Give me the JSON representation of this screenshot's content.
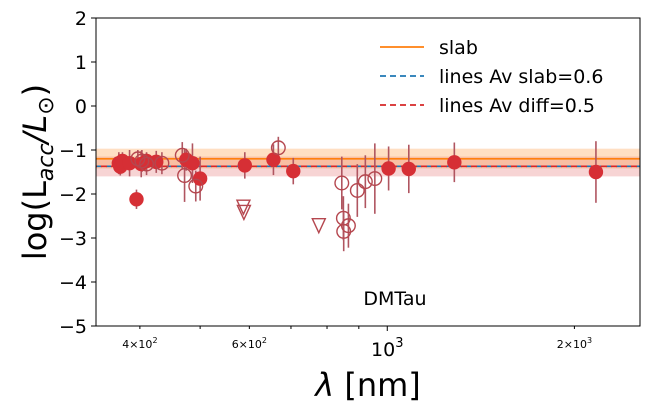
{
  "chart_data": {
    "type": "scatter",
    "title": "",
    "annotation": "DMTau",
    "xlabel": "λ [nm]",
    "ylabel": "log(L_acc/L_⊙)",
    "xscale": "log",
    "xlim": [
      340,
      2550
    ],
    "ylim": [
      -5,
      2
    ],
    "y_ticks": [
      {
        "v": 2,
        "label": "2"
      },
      {
        "v": 1,
        "label": "1"
      },
      {
        "v": 0,
        "label": "0"
      },
      {
        "v": -1,
        "label": "−1"
      },
      {
        "v": -2,
        "label": "−2"
      },
      {
        "v": -3,
        "label": "−3"
      },
      {
        "v": -4,
        "label": "−4"
      },
      {
        "v": -5,
        "label": "−5"
      }
    ],
    "x_ticks": [
      {
        "v": 400,
        "base": "4×10",
        "exp": "2",
        "major": false
      },
      {
        "v": 600,
        "base": "6×10",
        "exp": "2",
        "major": false
      },
      {
        "v": 1000,
        "base": "10",
        "exp": "3",
        "major": true
      },
      {
        "v": 2000,
        "base": "2×10",
        "exp": "3",
        "major": false
      }
    ],
    "x_minor_ticks": [
      300,
      500,
      700,
      800,
      900
    ],
    "legend": {
      "position": "top-right",
      "entries": [
        {
          "label": "slab",
          "color": "#ff7f0e",
          "dash": "solid"
        },
        {
          "label": "lines Av slab=0.6",
          "color": "#1f77b4",
          "dash": "dashed"
        },
        {
          "label": "lines Av diff=0.5",
          "color": "#d62728",
          "dash": "dashed"
        }
      ]
    },
    "reference_lines": {
      "slab": {
        "value": -1.2,
        "band": [
          -1.42,
          -0.97
        ],
        "color": "#ff7f0e"
      },
      "lines_av_slab": {
        "value": -1.37,
        "color": "#1f77b4"
      },
      "lines_av_diff": {
        "value": -1.37,
        "band": [
          -1.6,
          -1.15
        ],
        "color": "#d62728"
      }
    },
    "marker_color": "#d62f35",
    "open_color": "#b5474f",
    "errbar_color": "#b05560",
    "series": [
      {
        "kind": "filled",
        "points": [
          {
            "x": 370,
            "y": -1.3,
            "err": 0.25
          },
          {
            "x": 372,
            "y": -1.38,
            "err": 0.2
          },
          {
            "x": 375,
            "y": -1.25,
            "err": 0.2
          },
          {
            "x": 385,
            "y": -1.3,
            "err": 0.3
          },
          {
            "x": 395,
            "y": -2.12,
            "err": 0.22
          },
          {
            "x": 402,
            "y": -1.32,
            "err": 0.3
          },
          {
            "x": 410,
            "y": -1.25,
            "err": 0.2
          },
          {
            "x": 425,
            "y": -1.27,
            "err": 0.25
          },
          {
            "x": 475,
            "y": -1.22,
            "err": 0.25
          },
          {
            "x": 486,
            "y": -1.3,
            "err": 0.45
          },
          {
            "x": 500,
            "y": -1.65,
            "err": 0.5
          },
          {
            "x": 590,
            "y": -1.35,
            "err": 0.3
          },
          {
            "x": 656,
            "y": -1.22,
            "err": 0.35
          },
          {
            "x": 706,
            "y": -1.48,
            "err": 0.3
          },
          {
            "x": 1005,
            "y": -1.42,
            "err": 0.5
          },
          {
            "x": 1083,
            "y": -1.43,
            "err": 0.55
          },
          {
            "x": 1282,
            "y": -1.28,
            "err": 0.45
          },
          {
            "x": 2166,
            "y": -1.5,
            "err": 0.7
          }
        ]
      },
      {
        "kind": "open",
        "points": [
          {
            "x": 397,
            "y": -1.2,
            "err": 0.2
          },
          {
            "x": 403,
            "y": -1.25,
            "err": 0.25
          },
          {
            "x": 410,
            "y": -1.32,
            "err": 0.25
          },
          {
            "x": 434,
            "y": -1.3,
            "err": 0.25
          },
          {
            "x": 468,
            "y": -1.12,
            "err": 0.3
          },
          {
            "x": 472,
            "y": -1.58,
            "err": 0.6
          },
          {
            "x": 492,
            "y": -1.82,
            "err": 0.35
          },
          {
            "x": 668,
            "y": -0.95,
            "err": 0.25
          },
          {
            "x": 845,
            "y": -1.75,
            "err": 0.6
          },
          {
            "x": 850,
            "y": -2.55,
            "err": 0.5
          },
          {
            "x": 851,
            "y": -2.85,
            "err": 0.45
          },
          {
            "x": 866,
            "y": -2.72,
            "err": 0.5
          },
          {
            "x": 895,
            "y": -1.92,
            "err": 0.6
          },
          {
            "x": 922,
            "y": -1.72,
            "err": 0.6
          },
          {
            "x": 955,
            "y": -1.65,
            "err": 0.8
          }
        ]
      },
      {
        "kind": "upper-limit",
        "points": [
          {
            "x": 587,
            "y": -2.3
          },
          {
            "x": 588,
            "y": -2.42
          },
          {
            "x": 776,
            "y": -2.72
          }
        ]
      }
    ]
  }
}
